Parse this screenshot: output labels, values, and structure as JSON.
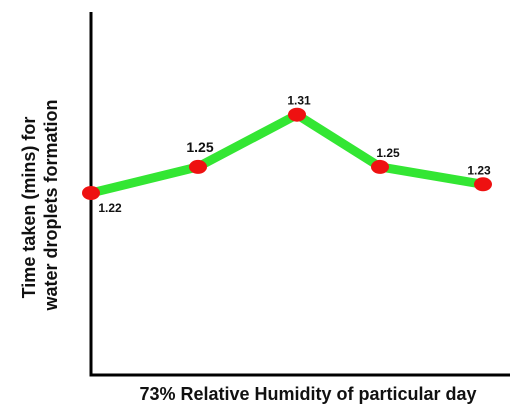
{
  "chart_data": {
    "type": "line",
    "title": "",
    "xlabel": "73% Relative Humidity of particular day",
    "ylabel_line1": "Time taken (mins) for",
    "ylabel_line2": "water droplets formation",
    "x": [
      1,
      2,
      3,
      4,
      5
    ],
    "series": [
      {
        "values": [
          1.22,
          1.25,
          1.31,
          1.25,
          1.23
        ],
        "labels": [
          "1.22",
          "1.25",
          "1.31",
          "1.25",
          "1.23"
        ]
      }
    ],
    "ylim": [
      1.0,
      1.4
    ],
    "grid": false,
    "tick_labels_shown": false,
    "line_color": "#33e633",
    "marker_color": "#ee1111",
    "axis_color": "#000000"
  }
}
